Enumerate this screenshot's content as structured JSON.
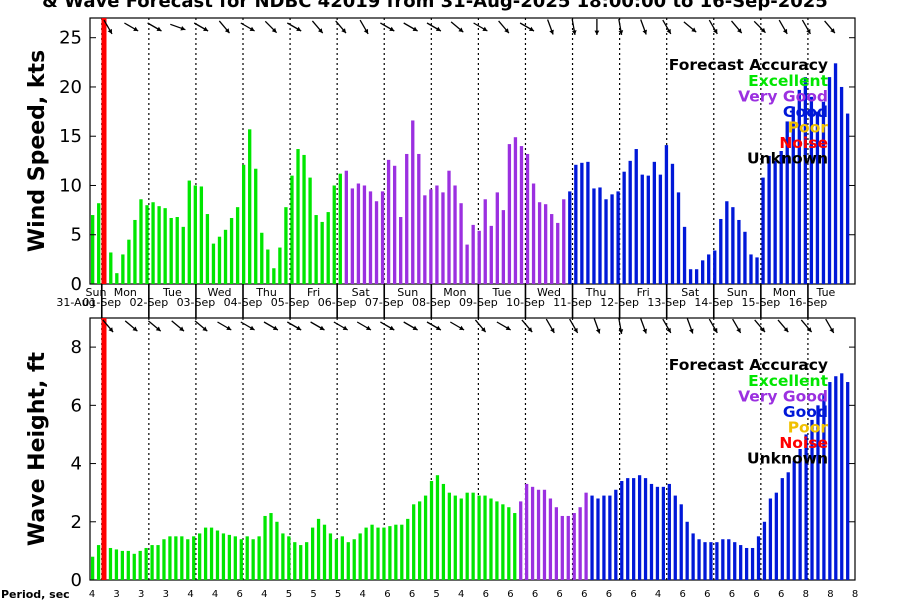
{
  "title": "& Wave Forecast for NDBC 42019 from 31-Aug-2025 18:00:00 to 16-Sep-2025",
  "period_label": "Period, sec",
  "accuracy_legend": {
    "title": "Forecast Accuracy",
    "items": [
      {
        "label": "Excellent",
        "color": "#00e600"
      },
      {
        "label": "Very Good",
        "color": "#9b30e0"
      },
      {
        "label": "Good",
        "color": "#0018d8"
      },
      {
        "label": "Poor",
        "color": "#f0c000"
      },
      {
        "label": "Noise",
        "color": "#ff0000"
      },
      {
        "label": "Unknown",
        "color": "#000000"
      }
    ]
  },
  "colors": {
    "excellent": "#00e600",
    "very_good": "#9b30e0",
    "good": "#0018d8",
    "now_line": "#ff0000"
  },
  "days": [
    {
      "dow": "Sun",
      "date": "31-Aug"
    },
    {
      "dow": "Mon",
      "date": "01-Sep"
    },
    {
      "dow": "Tue",
      "date": "02-Sep"
    },
    {
      "dow": "Wed",
      "date": "03-Sep"
    },
    {
      "dow": "Thu",
      "date": "04-Sep"
    },
    {
      "dow": "Fri",
      "date": "05-Sep"
    },
    {
      "dow": "Sat",
      "date": "06-Sep"
    },
    {
      "dow": "Sun",
      "date": "07-Sep"
    },
    {
      "dow": "Mon",
      "date": "08-Sep"
    },
    {
      "dow": "Tue",
      "date": "09-Sep"
    },
    {
      "dow": "Wed",
      "date": "10-Sep"
    },
    {
      "dow": "Thu",
      "date": "11-Sep"
    },
    {
      "dow": "Fri",
      "date": "12-Sep"
    },
    {
      "dow": "Sat",
      "date": "13-Sep"
    },
    {
      "dow": "Sun",
      "date": "14-Sep"
    },
    {
      "dow": "Mon",
      "date": "15-Sep"
    },
    {
      "dow": "Tue",
      "date": "16-Sep"
    }
  ],
  "periods": [
    "4",
    "3",
    "3",
    "3",
    "4",
    "4",
    "6",
    "4",
    "5",
    "5",
    "5",
    "4",
    "6",
    "6",
    "5",
    "4",
    "6",
    "6",
    "6",
    "6",
    "6",
    "6",
    "6",
    "4",
    "6",
    "6",
    "6",
    "6",
    "6",
    "8",
    "8",
    "8"
  ],
  "chart_data": [
    {
      "type": "bar",
      "ylabel": "Wind Speed, kts",
      "ylim": [
        0,
        27
      ],
      "yticks": [
        0,
        5,
        10,
        15,
        20,
        25
      ],
      "time_start_hour": 18,
      "hours_per_bar": 3,
      "now_hour_offset": 0,
      "wind_dir_deg": [
        330,
        300,
        300,
        290,
        300,
        320,
        300,
        315,
        300,
        320,
        320,
        330,
        300,
        300,
        300,
        310,
        300,
        320,
        300,
        340,
        350,
        0,
        350,
        340,
        330,
        310,
        330,
        320,
        315,
        330,
        330,
        320
      ],
      "values": [
        7,
        8.2,
        0,
        3.2,
        1.1,
        3,
        4.5,
        6.5,
        8.6,
        8,
        8.3,
        7.9,
        7.7,
        6.7,
        6.8,
        5.8,
        10.5,
        10,
        9.9,
        7.1,
        4.1,
        4.8,
        5.5,
        6.7,
        7.8,
        12.1,
        15.7,
        11.7,
        5.2,
        3.5,
        1.6,
        3.7,
        7.8,
        11,
        13.7,
        13.1,
        10.8,
        7,
        6.3,
        7.3,
        10,
        11.2,
        11.5,
        9.7,
        10.2,
        10,
        9.4,
        8.4,
        9.4,
        12.6,
        12,
        6.8,
        13.2,
        16.6,
        13.2,
        9,
        9.6,
        10,
        9.3,
        11.5,
        10,
        8.2,
        4,
        6,
        5.4,
        8.6,
        5.9,
        9.3,
        7.5,
        14.2,
        14.9,
        14,
        13.2,
        10.2,
        8.3,
        8.1,
        7.1,
        6.2,
        8.6,
        9.4,
        12.1,
        12.3,
        12.4,
        9.7,
        9.8,
        8.6,
        9.1,
        9.4,
        11.4,
        12.5,
        13.7,
        11.1,
        11,
        12.4,
        11.1,
        14.1,
        12.2,
        9.3,
        5.8,
        1.5,
        1.5,
        2.4,
        3,
        3.4,
        6.6,
        8.4,
        7.8,
        6.5,
        5.3,
        3,
        2.7,
        10.8,
        13,
        12.5,
        13.5,
        16.5,
        18,
        19.7,
        21,
        19,
        17.5,
        18.5,
        21,
        22.4,
        20,
        17.3
      ],
      "bar_colors_by_index": [
        {
          "from": 0,
          "to": 41,
          "color": "excellent"
        },
        {
          "from": 42,
          "to": 78,
          "color": "very_good"
        },
        {
          "from": 79,
          "to": 127,
          "color": "good"
        }
      ]
    },
    {
      "type": "bar",
      "ylabel": "Wave Height, ft",
      "ylim": [
        0,
        9
      ],
      "yticks": [
        0,
        2,
        4,
        6,
        8
      ],
      "wave_dir_deg": [
        320,
        310,
        310,
        310,
        310,
        300,
        300,
        300,
        300,
        300,
        300,
        300,
        300,
        300,
        300,
        300,
        320,
        300,
        320,
        330,
        330,
        340,
        350,
        340,
        330,
        340,
        330,
        330,
        320,
        320,
        320,
        330
      ],
      "values": [
        0.8,
        1.2,
        0,
        1.1,
        1.05,
        1,
        1,
        0.9,
        1,
        1.1,
        1.2,
        1.2,
        1.4,
        1.5,
        1.5,
        1.5,
        1.4,
        1.5,
        1.6,
        1.8,
        1.8,
        1.7,
        1.6,
        1.55,
        1.5,
        1.4,
        1.5,
        1.4,
        1.5,
        2.2,
        2.3,
        2,
        1.6,
        1.5,
        1.3,
        1.2,
        1.3,
        1.8,
        2.1,
        1.9,
        1.6,
        1.4,
        1.5,
        1.3,
        1.4,
        1.6,
        1.8,
        1.9,
        1.8,
        1.8,
        1.85,
        1.9,
        1.9,
        2.1,
        2.6,
        2.7,
        2.9,
        3.4,
        3.6,
        3.3,
        3,
        2.9,
        2.8,
        3,
        3,
        2.9,
        2.9,
        2.8,
        2.7,
        2.6,
        2.5,
        2.3,
        2.7,
        3.3,
        3.2,
        3.1,
        3.1,
        2.8,
        2.5,
        2.2,
        2.2,
        2.3,
        2.5,
        3,
        2.9,
        2.8,
        2.9,
        2.9,
        3.1,
        3.4,
        3.5,
        3.5,
        3.6,
        3.5,
        3.3,
        3.2,
        3.2,
        3.3,
        2.9,
        2.6,
        2.0,
        1.6,
        1.4,
        1.3,
        1.3,
        1.3,
        1.4,
        1.4,
        1.3,
        1.2,
        1.1,
        1.1,
        1.5,
        2.0,
        2.8,
        3.0,
        3.5,
        3.7,
        4.1,
        4.5,
        5,
        5.5,
        6,
        6.4,
        6.8,
        7.0,
        7.1,
        6.8
      ],
      "bar_colors_by_index": [
        {
          "from": 0,
          "to": 71,
          "color": "excellent"
        },
        {
          "from": 72,
          "to": 83,
          "color": "very_good"
        },
        {
          "from": 84,
          "to": 127,
          "color": "good"
        }
      ]
    }
  ]
}
